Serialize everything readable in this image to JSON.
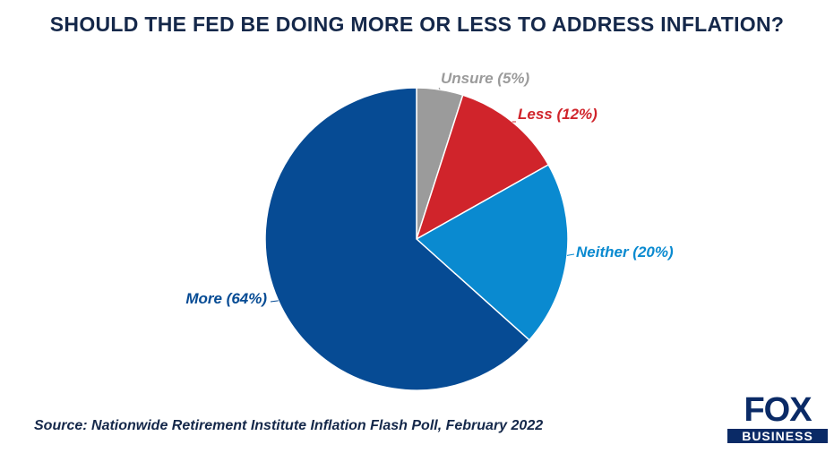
{
  "chart_data": {
    "type": "pie",
    "title": "SHOULD THE FED BE DOING MORE OR LESS TO ADDRESS INFLATION?",
    "slices": [
      {
        "label": "Unsure (5%)",
        "value": 5,
        "color": "#9b9b9b"
      },
      {
        "label": "Less (12%)",
        "value": 12,
        "color": "#d0242b"
      },
      {
        "label": "Neither (20%)",
        "value": 20,
        "color": "#0a8ad0"
      },
      {
        "label": "More (64%)",
        "value": 64,
        "color": "#064b94"
      }
    ],
    "source": "Source: Nationwide Retirement Institute Inflation Flash Poll, February 2022"
  },
  "brand": {
    "logo_top": "FOX",
    "logo_bottom": "BUSINESS"
  }
}
